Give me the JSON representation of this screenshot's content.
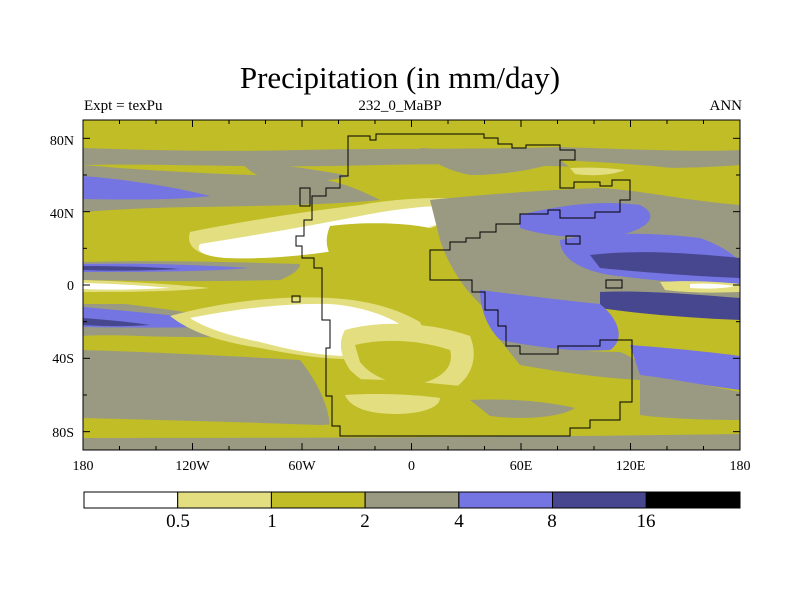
{
  "title": "Precipitation (in mm/day)",
  "subtitle_left": "Expt = texPu",
  "subtitle_center": "232_0_MaBP",
  "subtitle_right": "ANN",
  "map": {
    "lon_range": [
      -180,
      180
    ],
    "lat_range": [
      -90,
      90
    ],
    "x_ticks": [
      "180",
      "120W",
      "60W",
      "0",
      "60E",
      "120E",
      "180"
    ],
    "y_ticks": [
      "80N",
      "40N",
      "0",
      "40S",
      "80S"
    ]
  },
  "legend": {
    "levels": [
      "0.5",
      "1",
      "2",
      "4",
      "8",
      "16"
    ],
    "colors": [
      "#ffffff",
      "#e3df80",
      "#c0bd26",
      "#9a9a82",
      "#7474e2",
      "#47478f",
      "#000000"
    ]
  }
}
